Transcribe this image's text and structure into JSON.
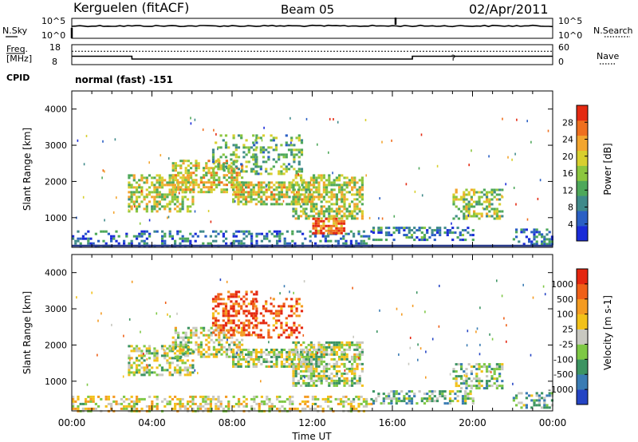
{
  "header": {
    "station": "Kerguelen (fitACF)",
    "beam": "Beam 05",
    "date": "02/Apr/2011"
  },
  "top_panels": {
    "nsky_label": "N.Sky",
    "nsearch_label": "N.Search",
    "left_ticks": [
      "10^5",
      "10^0"
    ],
    "right_ticks": [
      "10^5",
      "10^0"
    ],
    "freq_label_1": "Freq.",
    "freq_label_2": "[MHz]",
    "freq_ticks": [
      "18",
      "8"
    ],
    "nave_ticks": [
      "60",
      "0"
    ],
    "nave_label": "Nave",
    "cpid_label": "CPID",
    "cpid_text": "normal (fast) -151",
    "freq_series_mhz": {
      "x_hours": [
        0,
        3,
        3,
        17,
        17,
        24
      ],
      "values": [
        12.2,
        12.2,
        10.8,
        10.8,
        12.2,
        12.2
      ]
    },
    "nave_level": 40
  },
  "chart_data": [
    {
      "type": "heatmap",
      "parameter": "Power",
      "ylabel": "Slant Range [km]",
      "xlabel": "",
      "x_unit": "hours UT",
      "xlim": [
        0,
        24
      ],
      "ylim": [
        180,
        4500
      ],
      "yticks": [
        1000,
        2000,
        3000,
        4000
      ],
      "colorbar": {
        "label": "Power [dB]",
        "range": [
          0,
          32
        ],
        "ticks": [
          4,
          8,
          12,
          16,
          20,
          24,
          28
        ],
        "colors": [
          "#1a2bd8",
          "#2a5fc4",
          "#3f8a8a",
          "#4ea85a",
          "#8cc63e",
          "#d8cf2e",
          "#f3a52e",
          "#ef6f1e",
          "#e42a12"
        ]
      },
      "regions": [
        {
          "t0": 0.0,
          "t1": 15.0,
          "r0": 250,
          "r1": 650,
          "level": 0.22,
          "density": 0.35
        },
        {
          "t0": 2.8,
          "t1": 6.0,
          "r0": 1200,
          "r1": 2200,
          "level": 0.55,
          "density": 0.55
        },
        {
          "t0": 5.0,
          "t1": 8.5,
          "r0": 1700,
          "r1": 2600,
          "level": 0.6,
          "density": 0.55
        },
        {
          "t0": 7.0,
          "t1": 9.2,
          "r0": 2300,
          "r1": 3300,
          "level": 0.4,
          "density": 0.35
        },
        {
          "t0": 8.0,
          "t1": 12.0,
          "r0": 1400,
          "r1": 2000,
          "level": 0.58,
          "density": 0.65
        },
        {
          "t0": 9.0,
          "t1": 11.5,
          "r0": 2200,
          "r1": 3300,
          "level": 0.4,
          "density": 0.3
        },
        {
          "t0": 11.0,
          "t1": 14.5,
          "r0": 1000,
          "r1": 2200,
          "level": 0.55,
          "density": 0.6
        },
        {
          "t0": 12.0,
          "t1": 13.6,
          "r0": 600,
          "r1": 1000,
          "level": 0.85,
          "density": 0.8
        },
        {
          "t0": 15.0,
          "t1": 20.0,
          "r0": 380,
          "r1": 750,
          "level": 0.25,
          "density": 0.45
        },
        {
          "t0": 19.0,
          "t1": 21.5,
          "r0": 1000,
          "r1": 1800,
          "level": 0.5,
          "density": 0.45
        },
        {
          "t0": 22.0,
          "t1": 24.0,
          "r0": 300,
          "r1": 700,
          "level": 0.22,
          "density": 0.45
        }
      ]
    },
    {
      "type": "heatmap",
      "parameter": "Velocity",
      "ylabel": "Slant Range [km]",
      "xlabel": "Time UT",
      "x_unit": "hours UT",
      "xlim": [
        0,
        24
      ],
      "ylim": [
        180,
        4500
      ],
      "yticks": [
        1000,
        2000,
        3000,
        4000
      ],
      "xtick_labels": [
        "00:00",
        "04:00",
        "08:00",
        "12:00",
        "16:00",
        "20:00",
        "00:00"
      ],
      "colorbar": {
        "label": "Velocity [m s-1]",
        "tick_labels": [
          "1000",
          "500",
          "100",
          "25",
          "-25",
          "-100",
          "-500",
          "-1000"
        ],
        "colors": [
          "#2444c4",
          "#3a7cb4",
          "#3c9462",
          "#7ec845",
          "#c8c8c0",
          "#f2c11a",
          "#f49b22",
          "#ef6018",
          "#e42610"
        ]
      },
      "regions": [
        {
          "t0": 0.0,
          "t1": 15.0,
          "r0": 200,
          "r1": 600,
          "level": 0.55,
          "density": 0.4
        },
        {
          "t0": 2.8,
          "t1": 6.0,
          "r0": 1200,
          "r1": 2000,
          "level": 0.45,
          "density": 0.55
        },
        {
          "t0": 5.0,
          "t1": 8.5,
          "r0": 1700,
          "r1": 2500,
          "level": 0.5,
          "density": 0.5
        },
        {
          "t0": 7.0,
          "t1": 9.2,
          "r0": 2300,
          "r1": 3500,
          "level": 0.88,
          "density": 0.45
        },
        {
          "t0": 8.0,
          "t1": 12.0,
          "r0": 1400,
          "r1": 1900,
          "level": 0.45,
          "density": 0.65
        },
        {
          "t0": 9.0,
          "t1": 11.5,
          "r0": 2200,
          "r1": 3300,
          "level": 0.86,
          "density": 0.35
        },
        {
          "t0": 11.0,
          "t1": 14.5,
          "r0": 900,
          "r1": 2100,
          "level": 0.45,
          "density": 0.6
        },
        {
          "t0": 15.0,
          "t1": 20.0,
          "r0": 380,
          "r1": 750,
          "level": 0.35,
          "density": 0.45
        },
        {
          "t0": 19.0,
          "t1": 21.5,
          "r0": 800,
          "r1": 1500,
          "level": 0.4,
          "density": 0.45
        },
        {
          "t0": 22.0,
          "t1": 24.0,
          "r0": 300,
          "r1": 700,
          "level": 0.35,
          "density": 0.45
        }
      ]
    }
  ]
}
